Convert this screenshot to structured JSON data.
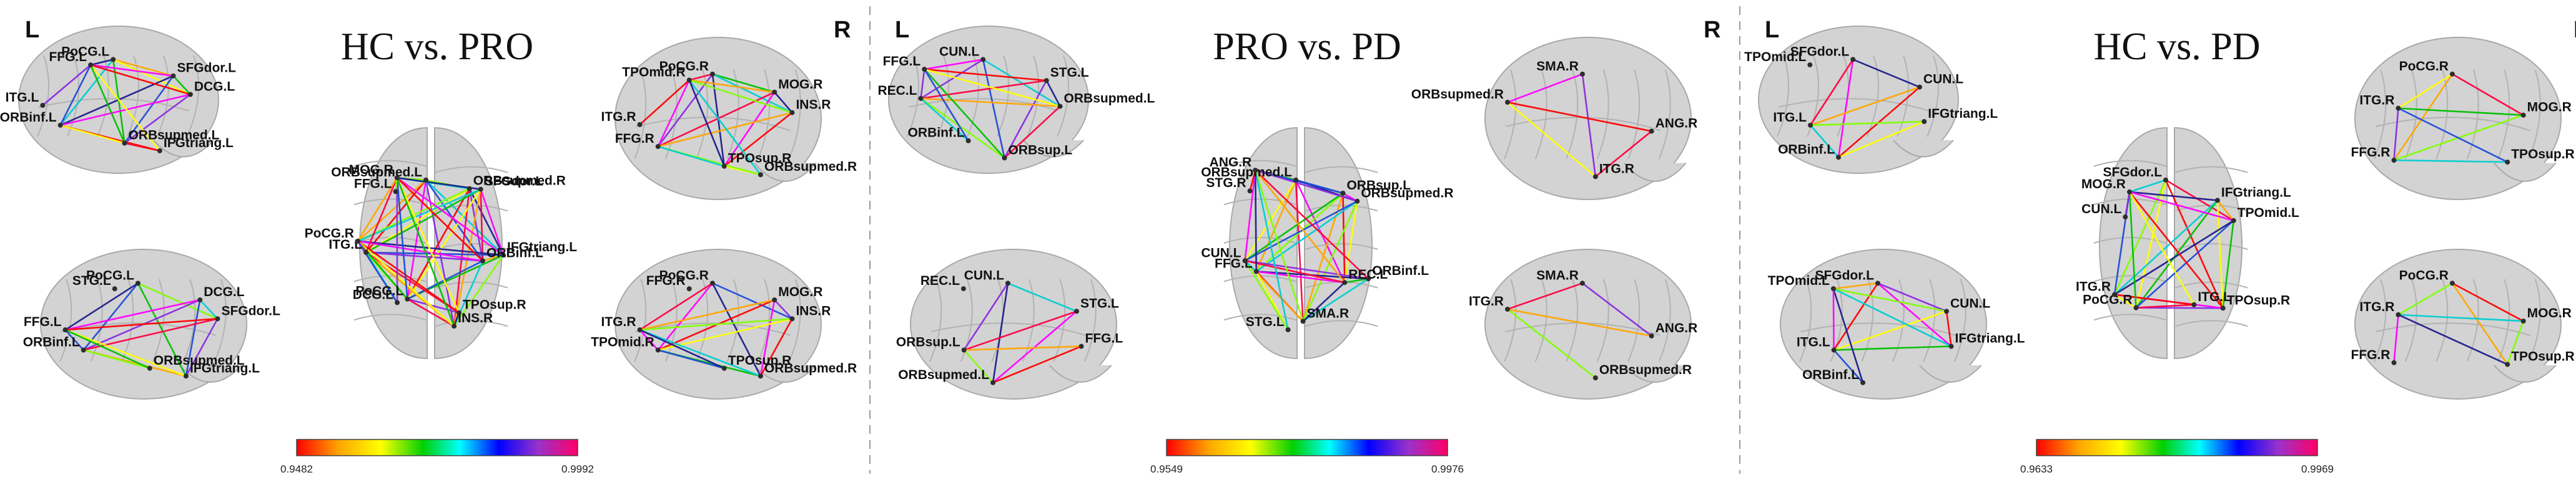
{
  "side_labels": {
    "left": "L",
    "right": "R"
  },
  "edge_color_scale": [
    "#ff0000",
    "#ffa500",
    "#ffff00",
    "#7fff00",
    "#00c000",
    "#00ced1",
    "#1e4bd8",
    "#1c1c8c",
    "#8a2be2",
    "#ff00ff",
    "#ff0040"
  ],
  "panels": [
    {
      "title": "HC vs. PRO",
      "colorbar": {
        "min": "0.9482",
        "max": "0.9992"
      },
      "views": {
        "lat_left": [
          "PoCG.L",
          "SFGdor.L",
          "DCG.L",
          "IFGtriang.L",
          "ORBsupmed.L",
          "ORBinf.L",
          "ITG.L",
          "FFG.L"
        ],
        "med_left": [
          "PoCG.L",
          "DCG.L",
          "SFGdor.L",
          "IFGtriang.L",
          "ORBsupmed.L",
          "ORBinf.L",
          "FFG.L",
          "STG.L"
        ],
        "top": [
          "ORBsupmed.L",
          "ORBsupmed.R",
          "SFGdor.L",
          "IFGtriang.L",
          "ORBinf.L",
          "TPOsup.R",
          "INS.R",
          "PoCG.L",
          "DCG.L",
          "ITG.L",
          "PoCG.R",
          "FFG.L",
          "MOG.R"
        ],
        "lat_right": [
          "PoCG.R",
          "MOG.R",
          "INS.R",
          "ORBsupmed.R",
          "TPOsup.R",
          "FFG.R",
          "ITG.R",
          "TPOmid.R"
        ],
        "med_right": [
          "PoCG.R",
          "MOG.R",
          "INS.R",
          "ORBsupmed.R",
          "TPOsup.R",
          "TPOmid.R",
          "ITG.R",
          "FFG.R"
        ]
      }
    },
    {
      "title": "PRO vs. PD",
      "colorbar": {
        "min": "0.9549",
        "max": "0.9976"
      },
      "views": {
        "lat_left": [
          "CUN.L",
          "STG.L",
          "ORBsupmed.L",
          "ORBsup.L",
          "ORBinf.L",
          "REC.L",
          "FFG.L"
        ],
        "med_left": [
          "CUN.L",
          "STG.L",
          "FFG.L",
          "ORBsupmed.L",
          "ORBsup.L",
          "REC.L"
        ],
        "top": [
          "ORBsupmed.L",
          "ORBsup.L",
          "ORBsupmed.R",
          "ORBinf.L",
          "REC.L",
          "SMA.R",
          "STG.L",
          "FFG.L",
          "CUN.L",
          "STG.R",
          "ANG.R"
        ],
        "lat_right": [
          "SMA.R",
          "ANG.R",
          "ITG.R",
          "ORBsupmed.R"
        ],
        "med_right": [
          "SMA.R",
          "ANG.R",
          "ORBsupmed.R",
          "ITG.R"
        ]
      }
    },
    {
      "title": "HC vs. PD",
      "colorbar": {
        "min": "0.9633",
        "max": "0.9969"
      },
      "views": {
        "lat_left": [
          "SFGdor.L",
          "CUN.L",
          "IFGtriang.L",
          "ORBinf.L",
          "ITG.L",
          "TPOmid.L"
        ],
        "med_left": [
          "SFGdor.L",
          "CUN.L",
          "IFGtriang.L",
          "ORBinf.L",
          "ITG.L",
          "TPOmid.L"
        ],
        "top": [
          "SFGdor.L",
          "IFGtriang.L",
          "TPOmid.L",
          "TPOsup.R",
          "ITG.L",
          "PoCG.R",
          "ITG.R",
          "CUN.L",
          "MOG.R"
        ],
        "lat_right": [
          "PoCG.R",
          "MOG.R",
          "TPOsup.R",
          "FFG.R",
          "ITG.R"
        ],
        "med_right": [
          "PoCG.R",
          "MOG.R",
          "TPOsup.R",
          "FFG.R",
          "ITG.R"
        ]
      }
    }
  ]
}
